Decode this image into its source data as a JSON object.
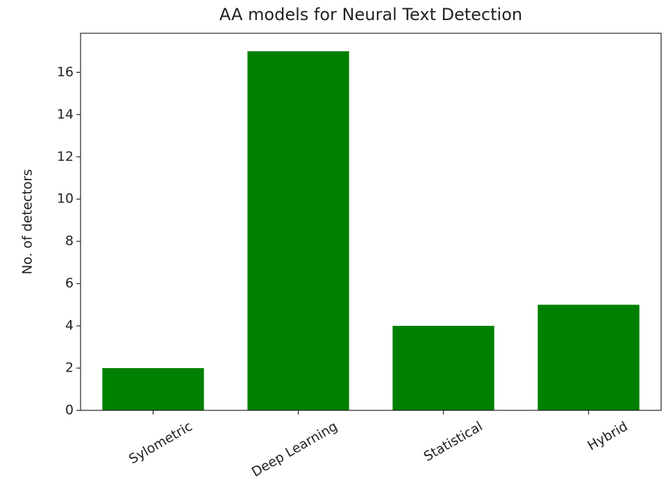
{
  "chart_data": {
    "type": "bar",
    "title": "AA models for Neural Text Detection",
    "y_label": "No. of detectors",
    "categories": [
      "Sylometric",
      "Deep Learning",
      "Statistical",
      "Hybrid"
    ],
    "values": [
      2,
      17,
      4,
      5
    ],
    "color": "#008000",
    "ylim": [
      0,
      17.85
    ],
    "yticks": [
      0,
      2,
      4,
      6,
      8,
      10,
      12,
      14,
      16
    ],
    "grid": false
  }
}
